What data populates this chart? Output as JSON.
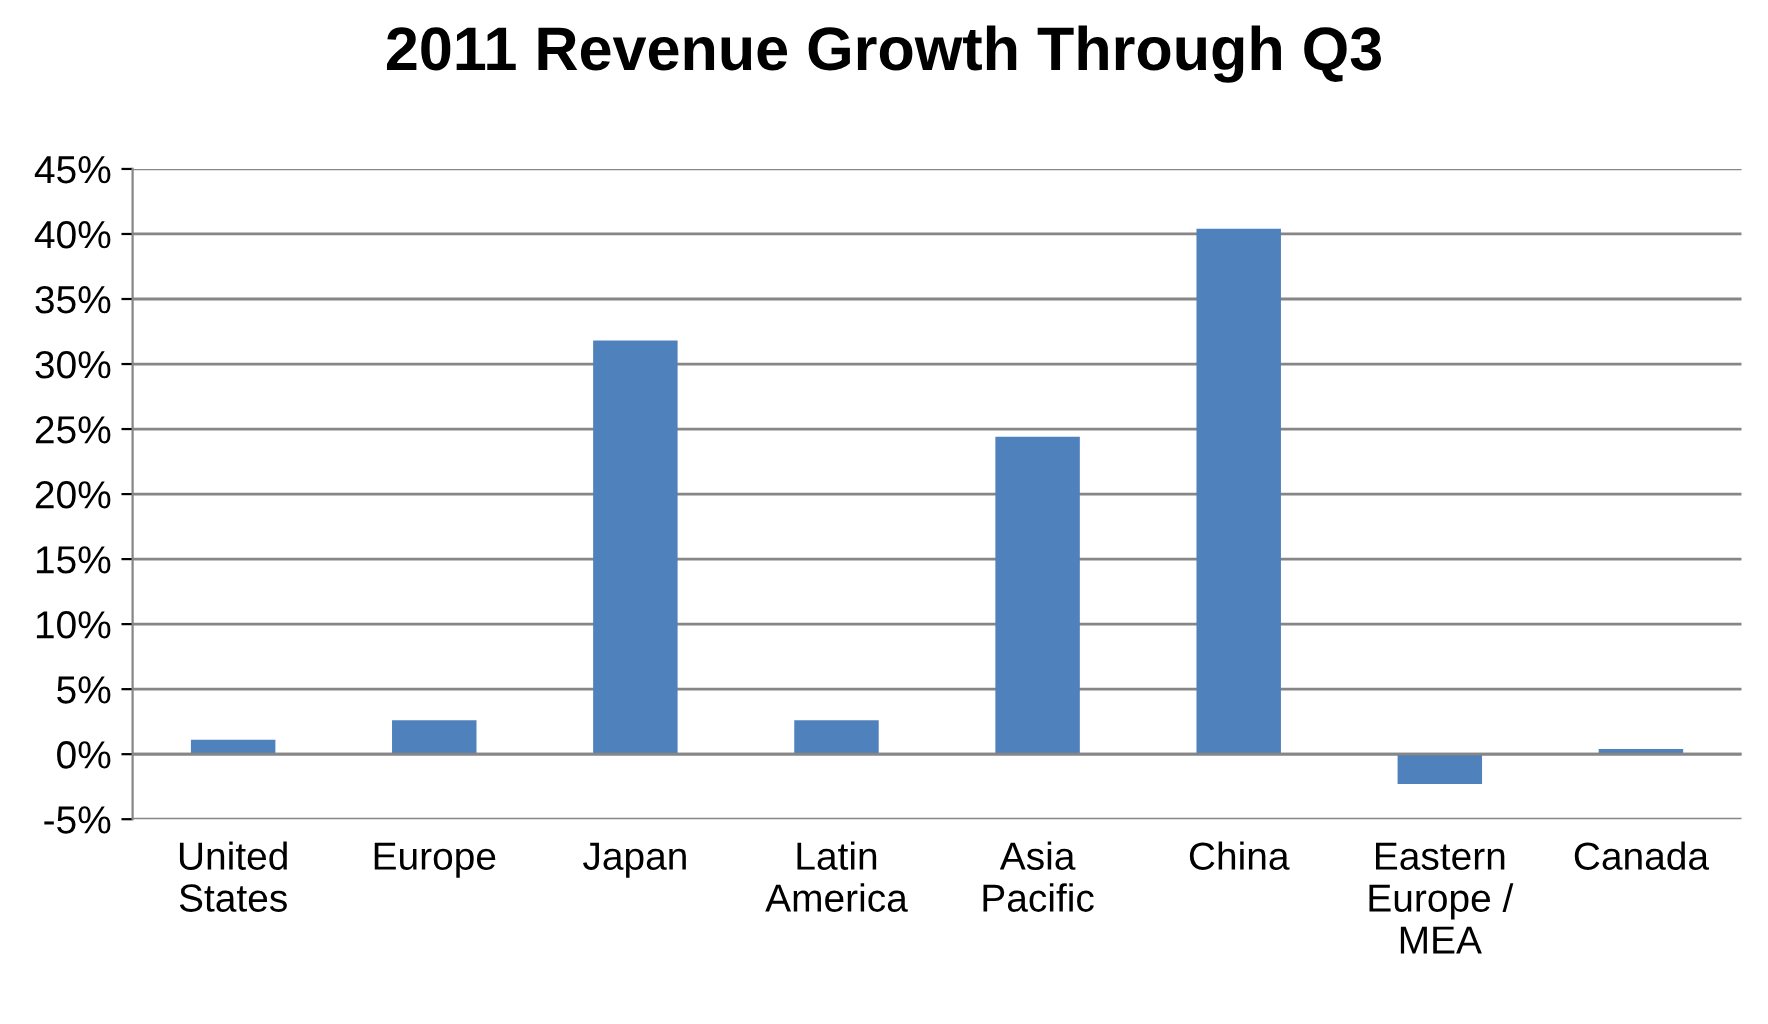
{
  "chart_data": {
    "type": "bar",
    "title": "2011 Revenue Growth Through Q3",
    "categories": [
      "United\nStates",
      "Europe",
      "Japan",
      "Latin\nAmerica",
      "Asia\nPacific",
      "China",
      "Eastern\nEurope /\nMEA",
      "Canada"
    ],
    "values": [
      1.1,
      2.6,
      31.8,
      2.6,
      24.4,
      40.4,
      -2.3,
      0.4
    ],
    "color": "#4f81bd",
    "ylim": [
      -5,
      45
    ],
    "yticks": [
      {
        "value": -5,
        "label": "-5%"
      },
      {
        "value": 0,
        "label": "0%"
      },
      {
        "value": 5,
        "label": "5%"
      },
      {
        "value": 10,
        "label": "10%"
      },
      {
        "value": 15,
        "label": "15%"
      },
      {
        "value": 20,
        "label": "20%"
      },
      {
        "value": 25,
        "label": "25%"
      },
      {
        "value": 30,
        "label": "30%"
      },
      {
        "value": 35,
        "label": "35%"
      },
      {
        "value": 40,
        "label": "40%"
      },
      {
        "value": 45,
        "label": "45%"
      }
    ],
    "grid": "y",
    "legend": false
  }
}
